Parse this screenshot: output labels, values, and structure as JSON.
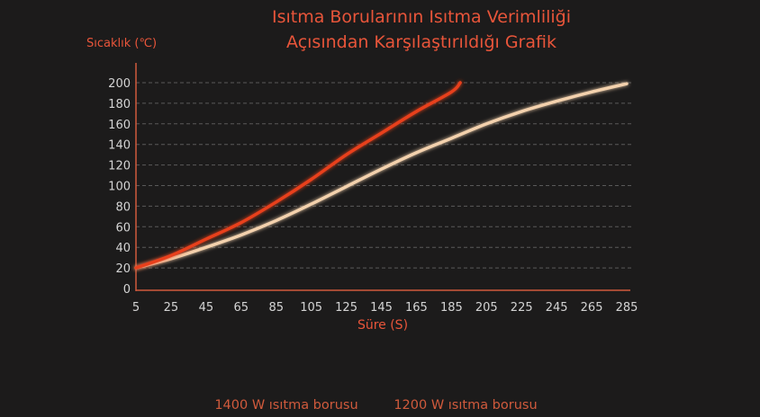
{
  "chart_data": {
    "type": "line",
    "title_lines": [
      "Isıtma Borularının Isıtma Verimliliği",
      "Açısından Karşılaştırıldığı Grafik"
    ],
    "xlabel": "Süre (S)",
    "ylabel": "Sıcaklık (℃)",
    "xlim": [
      5,
      285
    ],
    "ylim": [
      0,
      200
    ],
    "xticks": [
      5,
      25,
      45,
      65,
      85,
      105,
      125,
      145,
      165,
      185,
      205,
      225,
      245,
      265,
      285
    ],
    "yticks": [
      0,
      20,
      40,
      60,
      80,
      100,
      120,
      140,
      160,
      180,
      200
    ],
    "grid": true,
    "legend_position": "bottom",
    "series": [
      {
        "name": "1400 W ısıtma borusu",
        "color": "#e8401c",
        "x": [
          5,
          25,
          45,
          65,
          85,
          105,
          125,
          145,
          165,
          185,
          190
        ],
        "y": [
          20,
          32,
          48,
          64,
          84,
          106,
          130,
          151,
          172,
          191,
          200
        ]
      },
      {
        "name": "1200 W ısıtma borusu",
        "color": "#f3d1ad",
        "x": [
          5,
          25,
          45,
          65,
          85,
          105,
          125,
          145,
          165,
          185,
          205,
          225,
          245,
          265,
          285
        ],
        "y": [
          20,
          29,
          40,
          52,
          66,
          82,
          99,
          116,
          132,
          146,
          160,
          172,
          182,
          191,
          199
        ]
      }
    ]
  },
  "colors": {
    "title": "#e8553a",
    "axis_label": "#e8553a",
    "axis_line": "#d05a3c",
    "tick_text": "#d4d4d4",
    "grid": "#5a5a5a",
    "legend_text": "#d05a3c"
  }
}
